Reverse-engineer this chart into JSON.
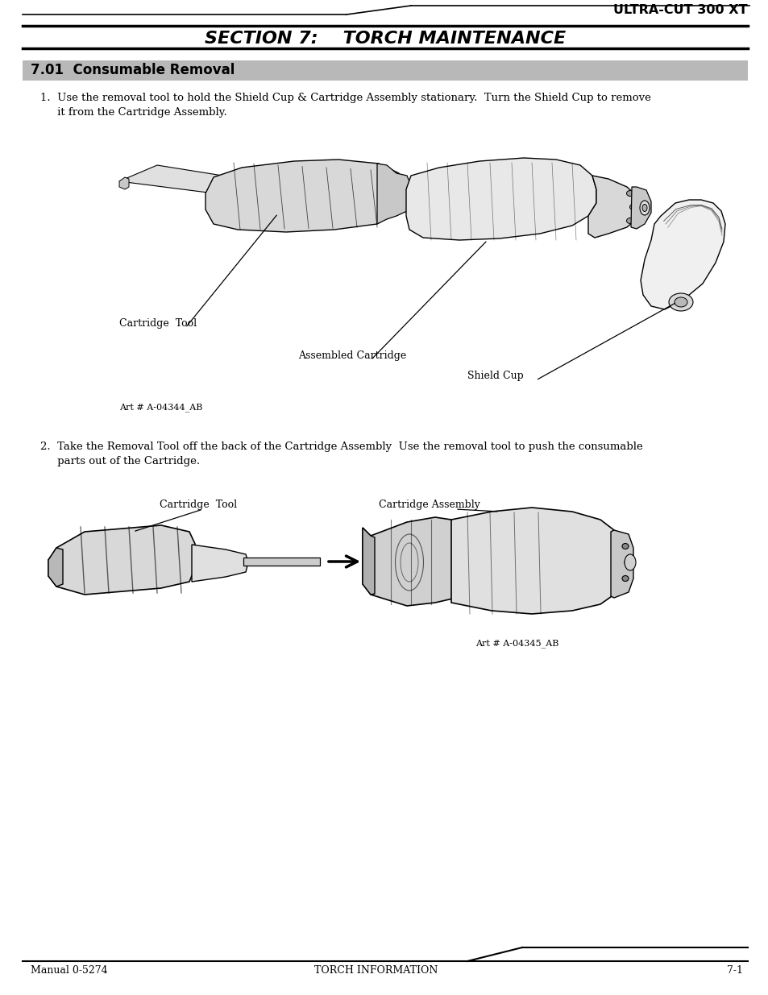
{
  "page_title_top": "ULTRA-CUT 300 XT",
  "section_title": "SECTION 7:    TORCH MAINTENANCE",
  "section_header": "7.01  Consumable Removal",
  "body_text_1a": "1.  Use the removal tool to hold the Shield Cup & Cartridge Assembly stationary.  Turn the Shield Cup to remove",
  "body_text_1b": "     it from the Cartridge Assembly.",
  "label_cartridge_tool_1": "Cartridge  Tool",
  "label_assembled_cartridge": "Assembled Cartridge",
  "label_shield_cup": "Shield Cup",
  "art_number_1": "Art # A-04344_AB",
  "body_text_2a": "2.  Take the Removal Tool off the back of the Cartridge Assembly  Use the removal tool to push the consumable",
  "body_text_2b": "     parts out of the Cartridge.",
  "label_cartridge_tool_2": "Cartridge  Tool",
  "label_cartridge_assembly": "Cartridge Assembly",
  "art_number_2": "Art # A-04345_AB",
  "footer_left": "Manual 0-5274",
  "footer_center": "TORCH INFORMATION",
  "footer_right": "7-1",
  "bg_color": "#ffffff",
  "text_color": "#000000",
  "section_header_bg": "#b8b8b8"
}
